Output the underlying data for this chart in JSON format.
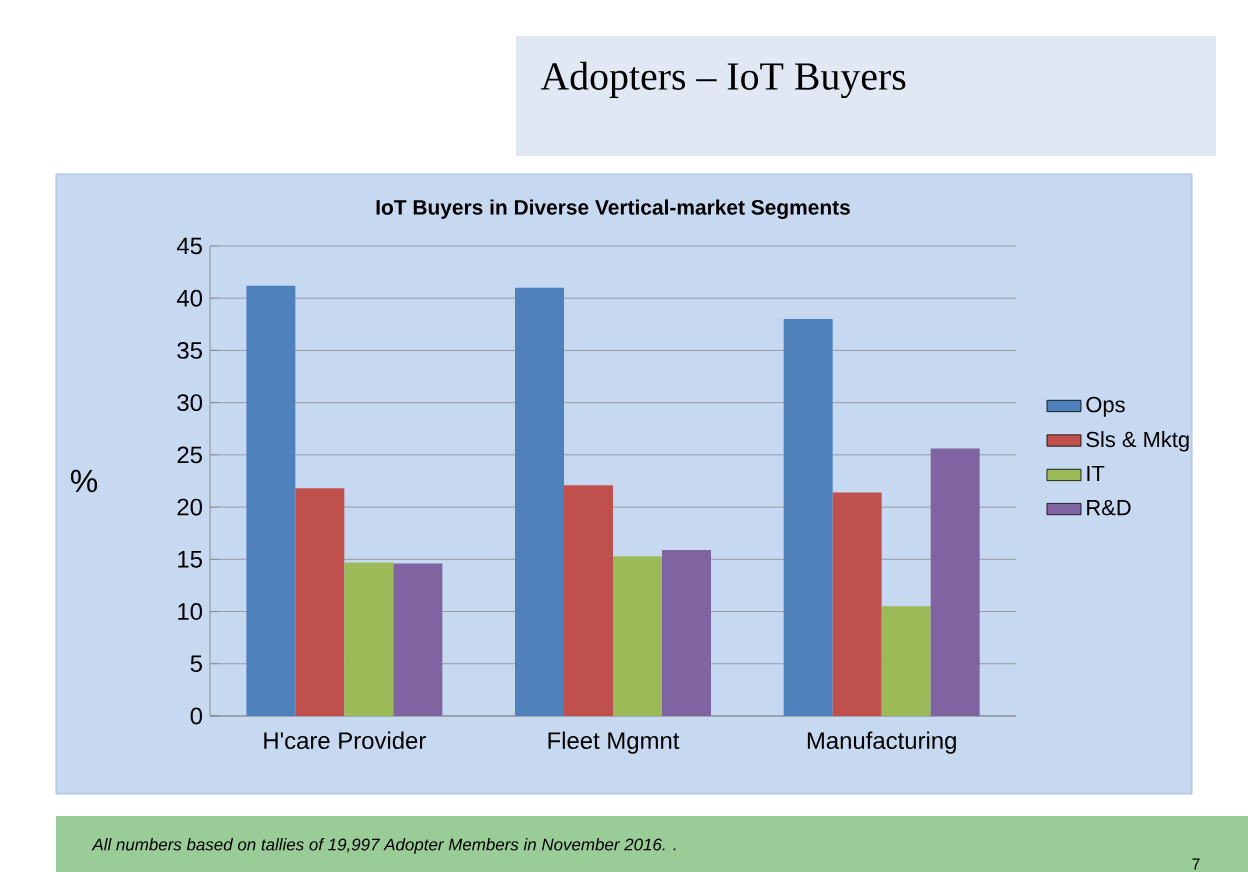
{
  "chart_data": {
    "type": "bar",
    "title": "IoT Buyers in Diverse Vertical-market Segments",
    "ylabel": "%",
    "categories": [
      "H'care Provider",
      "Fleet Mgmnt",
      "Manufacturing"
    ],
    "series": [
      {
        "name": "Ops",
        "color": "#4f81bd",
        "values": [
          41.2,
          41.0,
          38.0
        ]
      },
      {
        "name": "Sls & Mktg",
        "color": "#c0504d",
        "values": [
          21.8,
          22.1,
          21.4
        ]
      },
      {
        "name": "IT",
        "color": "#9bbb59",
        "values": [
          14.7,
          15.3,
          10.5
        ]
      },
      {
        "name": "R&D",
        "color": "#8064a2",
        "values": [
          14.6,
          15.9,
          25.6
        ]
      }
    ],
    "ylim": [
      0,
      45
    ],
    "yticks": [
      0,
      5,
      10,
      15,
      20,
      25,
      30,
      35,
      40,
      45
    ],
    "grid": "y",
    "legend": "right",
    "annotations": [
      "Adopters – IoT Buyers",
      "All numbers based on tallies of 19,997 Adopter Members in November 2016. .",
      "7"
    ]
  }
}
